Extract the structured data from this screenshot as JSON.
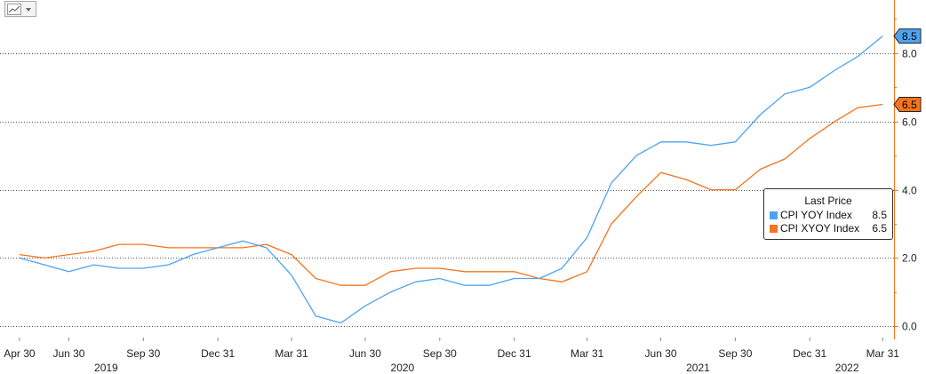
{
  "toolbar": {
    "chart_type_icon": "line-chart-icon",
    "dropdown_icon": "caret-down-icon"
  },
  "legend": {
    "title": "Last Price",
    "entries": [
      {
        "name": "CPI YOY Index",
        "value": "8.5",
        "color": "#4da3f0"
      },
      {
        "name": "CPI XYOY Index",
        "value": "6.5",
        "color": "#f5731d"
      }
    ]
  },
  "chart_data": {
    "type": "line",
    "title": "",
    "xlabel": "",
    "ylabel": "",
    "x": [
      "2019-04-30",
      "2019-05-31",
      "2019-06-30",
      "2019-07-31",
      "2019-08-31",
      "2019-09-30",
      "2019-10-31",
      "2019-11-30",
      "2019-12-31",
      "2020-01-31",
      "2020-02-29",
      "2020-03-31",
      "2020-04-30",
      "2020-05-31",
      "2020-06-30",
      "2020-07-31",
      "2020-08-31",
      "2020-09-30",
      "2020-10-31",
      "2020-11-30",
      "2020-12-31",
      "2021-01-31",
      "2021-02-28",
      "2021-03-31",
      "2021-04-30",
      "2021-05-31",
      "2021-06-30",
      "2021-07-31",
      "2021-08-31",
      "2021-09-30",
      "2021-10-31",
      "2021-11-30",
      "2021-12-31",
      "2022-01-31",
      "2022-02-28",
      "2022-03-31"
    ],
    "series": [
      {
        "name": "CPI YOY Index",
        "color": "#4da3f0",
        "values": [
          2.0,
          1.8,
          1.6,
          1.8,
          1.7,
          1.7,
          1.8,
          2.1,
          2.3,
          2.5,
          2.3,
          1.5,
          0.3,
          0.1,
          0.6,
          1.0,
          1.3,
          1.4,
          1.2,
          1.2,
          1.4,
          1.4,
          1.7,
          2.6,
          4.2,
          5.0,
          5.4,
          5.4,
          5.3,
          5.4,
          6.2,
          6.8,
          7.0,
          7.5,
          7.9,
          8.5
        ]
      },
      {
        "name": "CPI XYOY Index",
        "color": "#f5731d",
        "values": [
          2.1,
          2.0,
          2.1,
          2.2,
          2.4,
          2.4,
          2.3,
          2.3,
          2.3,
          2.3,
          2.4,
          2.1,
          1.4,
          1.2,
          1.2,
          1.6,
          1.7,
          1.7,
          1.6,
          1.6,
          1.6,
          1.4,
          1.3,
          1.6,
          3.0,
          3.8,
          4.5,
          4.3,
          4.0,
          4.0,
          4.6,
          4.9,
          5.5,
          6.0,
          6.4,
          6.5
        ]
      }
    ],
    "ylim": [
      -0.2,
      9.4
    ],
    "yticks": [
      0.0,
      2.0,
      4.0,
      6.0,
      8.0
    ],
    "ytick_labels": [
      "0.0",
      "2.0",
      "4.0",
      "6.0",
      "8.0"
    ],
    "y_axis_side": "right",
    "grid": "horizontal dotted",
    "xtick_labels": [
      {
        "date": "2019-04-30",
        "label": "Apr 30"
      },
      {
        "date": "2019-06-30",
        "label": "Jun 30"
      },
      {
        "date": "2019-09-30",
        "label": "Sep 30"
      },
      {
        "date": "2019-12-31",
        "label": "Dec 31"
      },
      {
        "date": "2020-03-31",
        "label": "Mar 31"
      },
      {
        "date": "2020-06-30",
        "label": "Jun 30"
      },
      {
        "date": "2020-09-30",
        "label": "Sep 30"
      },
      {
        "date": "2020-12-31",
        "label": "Dec 31"
      },
      {
        "date": "2021-03-31",
        "label": "Mar 31"
      },
      {
        "date": "2021-06-30",
        "label": "Jun 30"
      },
      {
        "date": "2021-09-30",
        "label": "Sep 30"
      },
      {
        "date": "2021-12-31",
        "label": "Dec 31"
      },
      {
        "date": "2022-03-31",
        "label": "Mar 31"
      }
    ],
    "year_labels": [
      {
        "date": "2019-08-15",
        "label": "2019"
      },
      {
        "date": "2020-08-15",
        "label": "2020"
      },
      {
        "date": "2021-08-15",
        "label": "2021"
      },
      {
        "date": "2022-02-15",
        "label": "2022"
      }
    ],
    "last_value_tags": [
      {
        "value": 8.5,
        "label": "8.5",
        "color": "#4da3f0"
      },
      {
        "value": 6.5,
        "label": "6.5",
        "color": "#f5731d"
      }
    ],
    "legend_position": "right"
  }
}
